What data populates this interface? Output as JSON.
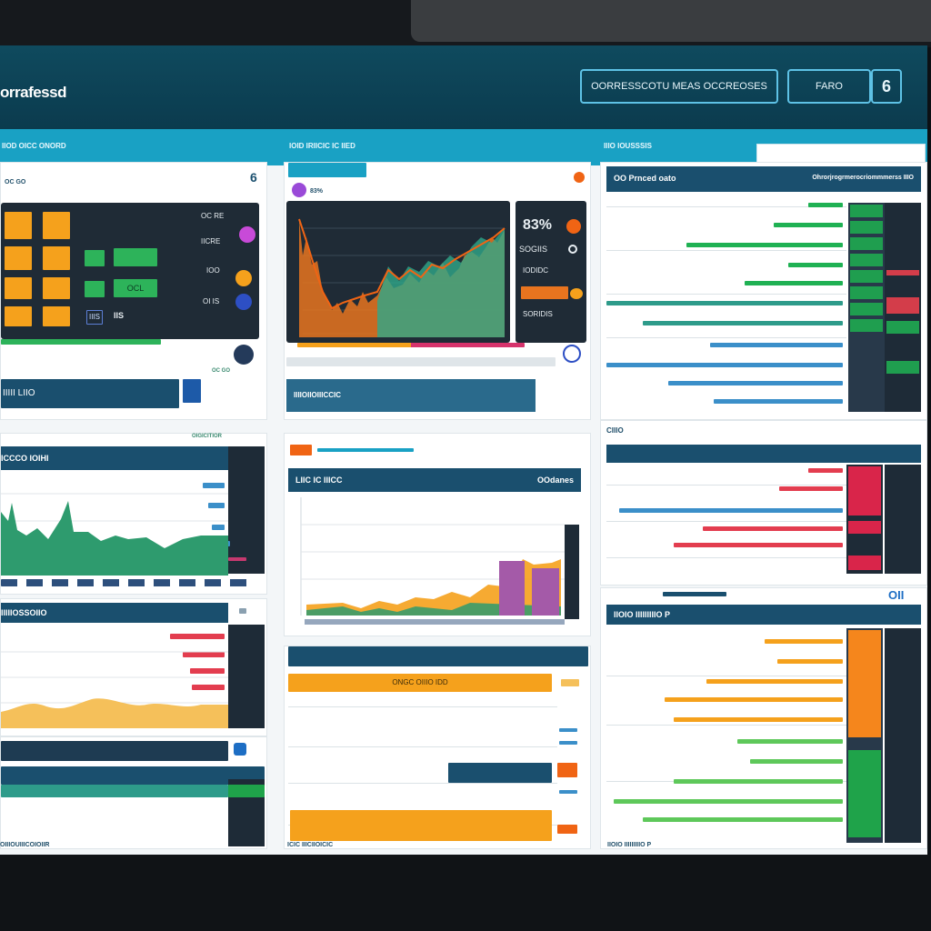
{
  "app": {
    "brand": "orrafessd",
    "search_label": "OORRESSCOTU MEAS OCCREOSES",
    "filter_label": "FARO",
    "badge_count": "6"
  },
  "subnav": [
    "IIOD OICC ONORD",
    "IOID IRIICIC IC IIED",
    "IIIO IOUSSSIS"
  ],
  "panels": {
    "kpi": {
      "label": "OC GO",
      "count": "6",
      "values": [
        "OC RE",
        "IICRE",
        "IOO",
        "OI IS"
      ],
      "tile_a": "OCL",
      "tile_b": "IIIS",
      "tile_c": "IIS",
      "footer": "IIIII LIIO"
    },
    "line": {
      "readout": "83%",
      "rows": [
        "SOGIIS",
        "IODIDC",
        "SORIDIS"
      ],
      "footer": "IIIIOIIOIIICCIC"
    },
    "ranking": {
      "title": "OO  Prnced  oato",
      "subtitle": "Ohrorjrogrmerocriommmerss IIIO"
    },
    "area": {
      "title": "ICCCO IOIHI",
      "sub": "OIGICITIOR"
    },
    "mix": {
      "title": "LIIC IC IIICC",
      "right": "OOdanes"
    },
    "compare": {
      "title": "ONGC OIIIO IDD",
      "right": "CIIIO"
    },
    "wave": {
      "title": "IIIIIOSSOIIO"
    },
    "table": {
      "title": "OIIIOUIIICOIOIIR",
      "footer": "ICIC IIICIIOICIC"
    },
    "status": {
      "title": "IIOIO IIIIIIIIIO P",
      "badge": "OII"
    }
  },
  "colors": {
    "accent_teal": "#19a1c4",
    "header_navy": "#1a4f6e",
    "orange": "#f5a11c",
    "green": "#1fb153",
    "red": "#e33d4f",
    "blue": "#3b8fc9",
    "dark": "#1e2b37"
  },
  "icons": [
    "search-icon",
    "filter-icon",
    "notification-badge-icon",
    "alert-dot-icon",
    "upload-icon"
  ]
}
